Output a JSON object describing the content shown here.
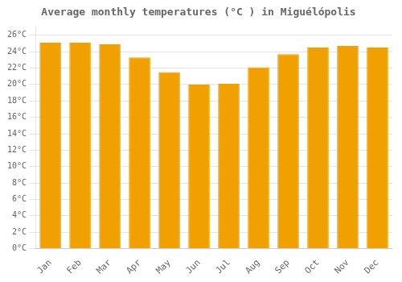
{
  "chart_data": {
    "type": "bar",
    "title": "Average monthly temperatures (°C ) in Miguélópolis",
    "categories": [
      "Jan",
      "Feb",
      "Mar",
      "Apr",
      "May",
      "Jun",
      "Jul",
      "Aug",
      "Sep",
      "Oct",
      "Nov",
      "Dec"
    ],
    "values": [
      25.1,
      25.1,
      24.9,
      23.3,
      21.5,
      20.0,
      20.1,
      22.1,
      23.7,
      24.5,
      24.7,
      24.5
    ],
    "color": "#F0A000",
    "ylim": [
      0,
      27
    ],
    "yticks": [
      {
        "value": 0,
        "label": "0°C"
      },
      {
        "value": 2,
        "label": "2°C"
      },
      {
        "value": 4,
        "label": "4°C"
      },
      {
        "value": 6,
        "label": "6°C"
      },
      {
        "value": 8,
        "label": "8°C"
      },
      {
        "value": 10,
        "label": "10°C"
      },
      {
        "value": 12,
        "label": "12°C"
      },
      {
        "value": 14,
        "label": "14°C"
      },
      {
        "value": 16,
        "label": "16°C"
      },
      {
        "value": 18,
        "label": "18°C"
      },
      {
        "value": 20,
        "label": "20°C"
      },
      {
        "value": 22,
        "label": "22°C"
      },
      {
        "value": 24,
        "label": "24°C"
      },
      {
        "value": 26,
        "label": "26°C"
      }
    ],
    "grid": true
  }
}
